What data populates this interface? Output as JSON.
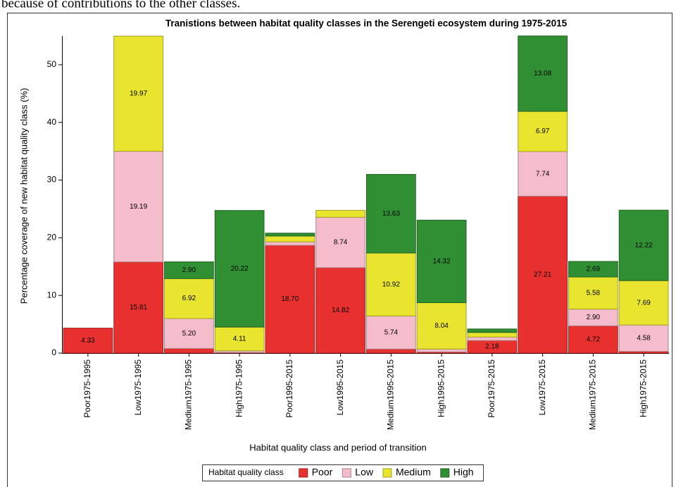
{
  "page_text": "because of contributions to the other classes.",
  "chart_data": {
    "type": "stacked_bar",
    "title": "Tranistions between habitat quality classes in the Serengeti ecosystem during 1975-2015",
    "x_label": "Habitat quality class and period of transition",
    "y_label": "Percentage coverage of new habitat quality class (%)",
    "categories": [
      "Poor1975-1995",
      "Low1975-1995",
      "Medium1975-1995",
      "High1975-1995",
      "Poor1995-2015",
      "Low1995-2015",
      "Medium1995-2015",
      "High1995-2015",
      "Poor1975-2015",
      "Low1975-2015",
      "Medium1975-2015",
      "High1975-2015"
    ],
    "legend_title": "Habitat quality class",
    "legend_position": "bottom",
    "ylim": [
      0,
      55
    ],
    "yticks": [
      0,
      10,
      20,
      30,
      40,
      50
    ],
    "series": [
      {
        "name": "Poor",
        "color": "#e8302f",
        "values": [
          4.33,
          15.81,
          0.8,
          0.1,
          18.7,
          14.82,
          0.7,
          0.2,
          2.18,
          27.21,
          4.72,
          0.3
        ],
        "value_labels": [
          "4.33",
          "15.81",
          null,
          null,
          "18.70",
          "14.82",
          null,
          null,
          "2.18",
          "27.21",
          "4.72",
          null
        ]
      },
      {
        "name": "Low",
        "color": "#f5bccb",
        "values": [
          0,
          19.19,
          5.2,
          0.3,
          0.6,
          8.74,
          5.74,
          0.5,
          0.6,
          7.74,
          2.9,
          4.58
        ],
        "value_labels": [
          null,
          "19.19",
          "5.20",
          null,
          null,
          "8.74",
          "5.74",
          null,
          null,
          "7.74",
          "2.90",
          "4.58"
        ]
      },
      {
        "name": "Medium",
        "color": "#e9e52e",
        "values": [
          0,
          19.97,
          6.92,
          4.11,
          1.0,
          1.2,
          10.92,
          8.04,
          0.8,
          6.97,
          5.58,
          7.69
        ],
        "value_labels": [
          null,
          "19.97",
          "6.92",
          "4.11",
          null,
          null,
          "10.92",
          "8.04",
          null,
          "6.97",
          "5.58",
          "7.69"
        ]
      },
      {
        "name": "High",
        "color": "#2f8f32",
        "values": [
          0,
          0,
          2.9,
          20.22,
          0.5,
          0,
          13.63,
          14.32,
          0.6,
          13.08,
          2.69,
          12.22
        ],
        "value_labels": [
          null,
          null,
          "2.90",
          "20.22",
          null,
          null,
          "13.63",
          "14.32",
          null,
          "13.08",
          "2.69",
          "12.22"
        ]
      }
    ]
  }
}
